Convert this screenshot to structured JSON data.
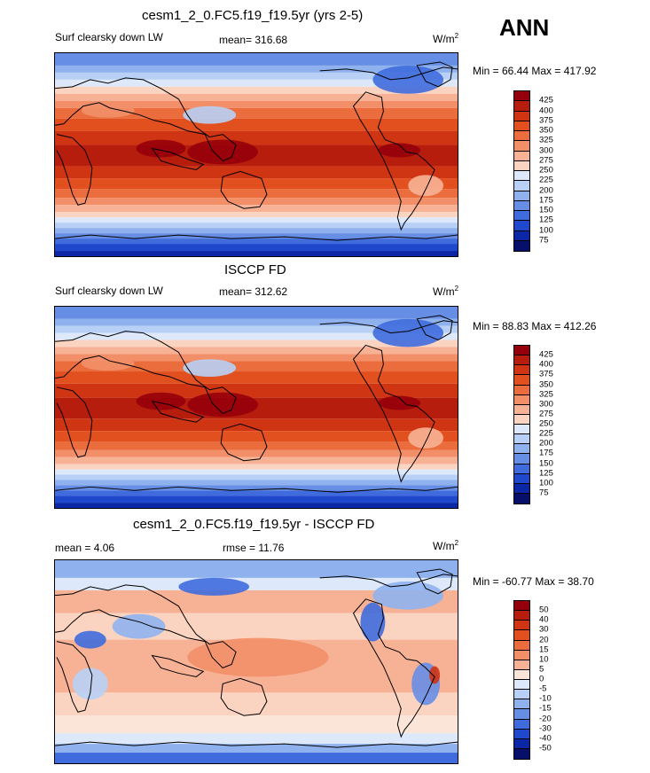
{
  "season": "ANN",
  "chart_data": [
    {
      "type": "heatmap",
      "title": "cesm1_2_0.FC5.f19_f19.5yr (yrs 2-5)",
      "left_label": "Surf clearsky down LW",
      "stat_label": "mean= 316.68",
      "units": "W/m",
      "units_exp": "2",
      "minmax": "Min =  66.44 Max = 417.92",
      "levels": [
        "425",
        "400",
        "375",
        "350",
        "325",
        "300",
        "275",
        "250",
        "225",
        "200",
        "175",
        "150",
        "125",
        "100",
        "75"
      ],
      "colors": [
        "#96000a",
        "#b71d0c",
        "#cf3413",
        "#e2501f",
        "#eb6d3d",
        "#f28f68",
        "#f7b295",
        "#fbd4c1",
        "#dde9fa",
        "#b8d0f5",
        "#8fb2ee",
        "#678ee5",
        "#3f6bdd",
        "#1f48cc",
        "#0b27a6",
        "#06106b"
      ]
    },
    {
      "type": "heatmap",
      "title": "ISCCP FD",
      "left_label": "Surf clearsky down LW",
      "stat_label": "mean= 312.62",
      "units": "W/m",
      "units_exp": "2",
      "minmax": "Min =  88.83 Max = 412.26",
      "levels": [
        "425",
        "400",
        "375",
        "350",
        "325",
        "300",
        "275",
        "250",
        "225",
        "200",
        "175",
        "150",
        "125",
        "100",
        "75"
      ],
      "colors": [
        "#96000a",
        "#b71d0c",
        "#cf3413",
        "#e2501f",
        "#eb6d3d",
        "#f28f68",
        "#f7b295",
        "#fbd4c1",
        "#dde9fa",
        "#b8d0f5",
        "#8fb2ee",
        "#678ee5",
        "#3f6bdd",
        "#1f48cc",
        "#0b27a6",
        "#06106b"
      ]
    },
    {
      "type": "heatmap",
      "title": "cesm1_2_0.FC5.f19_f19.5yr - ISCCP FD",
      "left_label": "mean =  4.06",
      "stat_label": "rmse =  11.76",
      "units": "W/m",
      "units_exp": "2",
      "minmax": "Min = -60.77 Max =  38.70",
      "levels": [
        "50",
        "40",
        "30",
        "20",
        "15",
        "10",
        "5",
        "0",
        "-5",
        "-10",
        "-15",
        "-20",
        "-30",
        "-40",
        "-50"
      ],
      "colors": [
        "#96000a",
        "#b71d0c",
        "#cf3413",
        "#e2501f",
        "#eb6d3d",
        "#f28f68",
        "#f7b295",
        "#fbe5d8",
        "#dde9fa",
        "#b8d0f5",
        "#8fb2ee",
        "#678ee5",
        "#3f6bdd",
        "#1f48cc",
        "#0b27a6",
        "#06106b"
      ]
    }
  ]
}
